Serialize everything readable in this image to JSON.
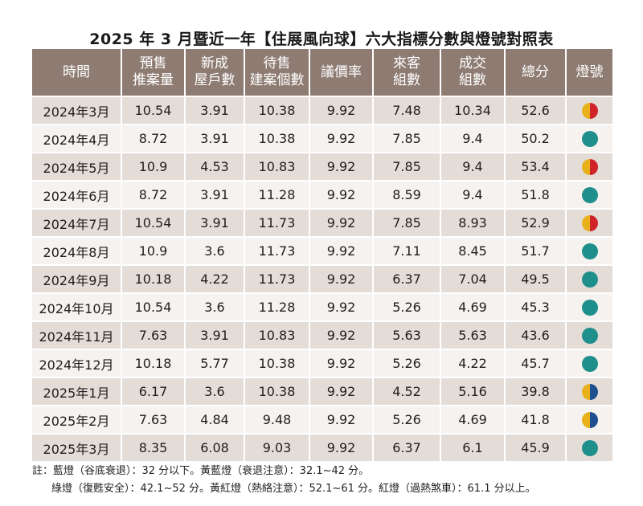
{
  "title": "2025 年 3 月暨近一年【住展風向球】六大指標分數與燈號對照表",
  "headers": [
    [
      "時間"
    ],
    [
      "預售",
      "推案量"
    ],
    [
      "新成",
      "屋戶數"
    ],
    [
      "待售",
      "建案個數"
    ],
    [
      "議價率"
    ],
    [
      "來客",
      "組數"
    ],
    [
      "成交",
      "組數"
    ],
    [
      "總分"
    ],
    [
      "燈號"
    ]
  ],
  "rows": [
    {
      "time": "2024年3月",
      "presale": "10.54",
      "new_units": "3.91",
      "for_sale": "10.38",
      "bargain": "9.92",
      "visitors": "7.48",
      "deals": "10.34",
      "total": "52.6",
      "light": "yellow-red"
    },
    {
      "time": "2024年4月",
      "presale": "8.72",
      "new_units": "3.91",
      "for_sale": "10.38",
      "bargain": "9.92",
      "visitors": "7.85",
      "deals": "9.4",
      "total": "50.2",
      "light": "blue"
    },
    {
      "time": "2024年5月",
      "presale": "10.9",
      "new_units": "4.53",
      "for_sale": "10.83",
      "bargain": "9.92",
      "visitors": "7.85",
      "deals": "9.4",
      "total": "53.4",
      "light": "yellow-red"
    },
    {
      "time": "2024年6月",
      "presale": "8.72",
      "new_units": "3.91",
      "for_sale": "11.28",
      "bargain": "9.92",
      "visitors": "8.59",
      "deals": "9.4",
      "total": "51.8",
      "light": "blue"
    },
    {
      "time": "2024年7月",
      "presale": "10.54",
      "new_units": "3.91",
      "for_sale": "11.73",
      "bargain": "9.92",
      "visitors": "7.85",
      "deals": "8.93",
      "total": "52.9",
      "light": "yellow-red"
    },
    {
      "time": "2024年8月",
      "presale": "10.9",
      "new_units": "3.6",
      "for_sale": "11.73",
      "bargain": "9.92",
      "visitors": "7.11",
      "deals": "8.45",
      "total": "51.7",
      "light": "blue"
    },
    {
      "time": "2024年9月",
      "presale": "10.18",
      "new_units": "4.22",
      "for_sale": "11.73",
      "bargain": "9.92",
      "visitors": "6.37",
      "deals": "7.04",
      "total": "49.5",
      "light": "blue"
    },
    {
      "time": "2024年10月",
      "presale": "10.54",
      "new_units": "3.6",
      "for_sale": "11.28",
      "bargain": "9.92",
      "visitors": "5.26",
      "deals": "4.69",
      "total": "45.3",
      "light": "blue"
    },
    {
      "time": "2024年11月",
      "presale": "7.63",
      "new_units": "3.91",
      "for_sale": "10.83",
      "bargain": "9.92",
      "visitors": "5.63",
      "deals": "5.63",
      "total": "43.6",
      "light": "blue"
    },
    {
      "time": "2024年12月",
      "presale": "10.18",
      "new_units": "5.77",
      "for_sale": "10.38",
      "bargain": "9.92",
      "visitors": "5.26",
      "deals": "4.22",
      "total": "45.7",
      "light": "blue"
    },
    {
      "time": "2025年1月",
      "presale": "6.17",
      "new_units": "3.6",
      "for_sale": "10.38",
      "bargain": "9.92",
      "visitors": "4.52",
      "deals": "5.16",
      "total": "39.8",
      "light": "yellow-blue"
    },
    {
      "time": "2025年2月",
      "presale": "7.63",
      "new_units": "4.84",
      "for_sale": "9.48",
      "bargain": "9.92",
      "visitors": "5.26",
      "deals": "4.69",
      "total": "41.8",
      "light": "yellow-blue"
    },
    {
      "time": "2025年3月",
      "presale": "8.35",
      "new_units": "6.08",
      "for_sale": "9.03",
      "bargain": "9.92",
      "visitors": "6.37",
      "deals": "6.1",
      "total": "45.9",
      "light": "blue"
    }
  ],
  "notes": {
    "line1": "註：藍燈（谷底衰退）：32 分以下。黃藍燈（衰退注意）：32.1~42 分。",
    "line2": "綠燈（復甦安全）：42.1~52 分。黃紅燈（熱絡注意）：52.1~61 分。紅燈（過熱煞車）：61.1 分以上。"
  },
  "colors": {
    "header_bg": "#8e7b72",
    "row_odd": "#e4dcd7",
    "row_even": "#f5f2f0",
    "light_blue": "#1f8f8c",
    "light_yellow": "#e8b11a",
    "light_red": "#d0232a",
    "light_dark_blue": "#1f4f8f"
  }
}
